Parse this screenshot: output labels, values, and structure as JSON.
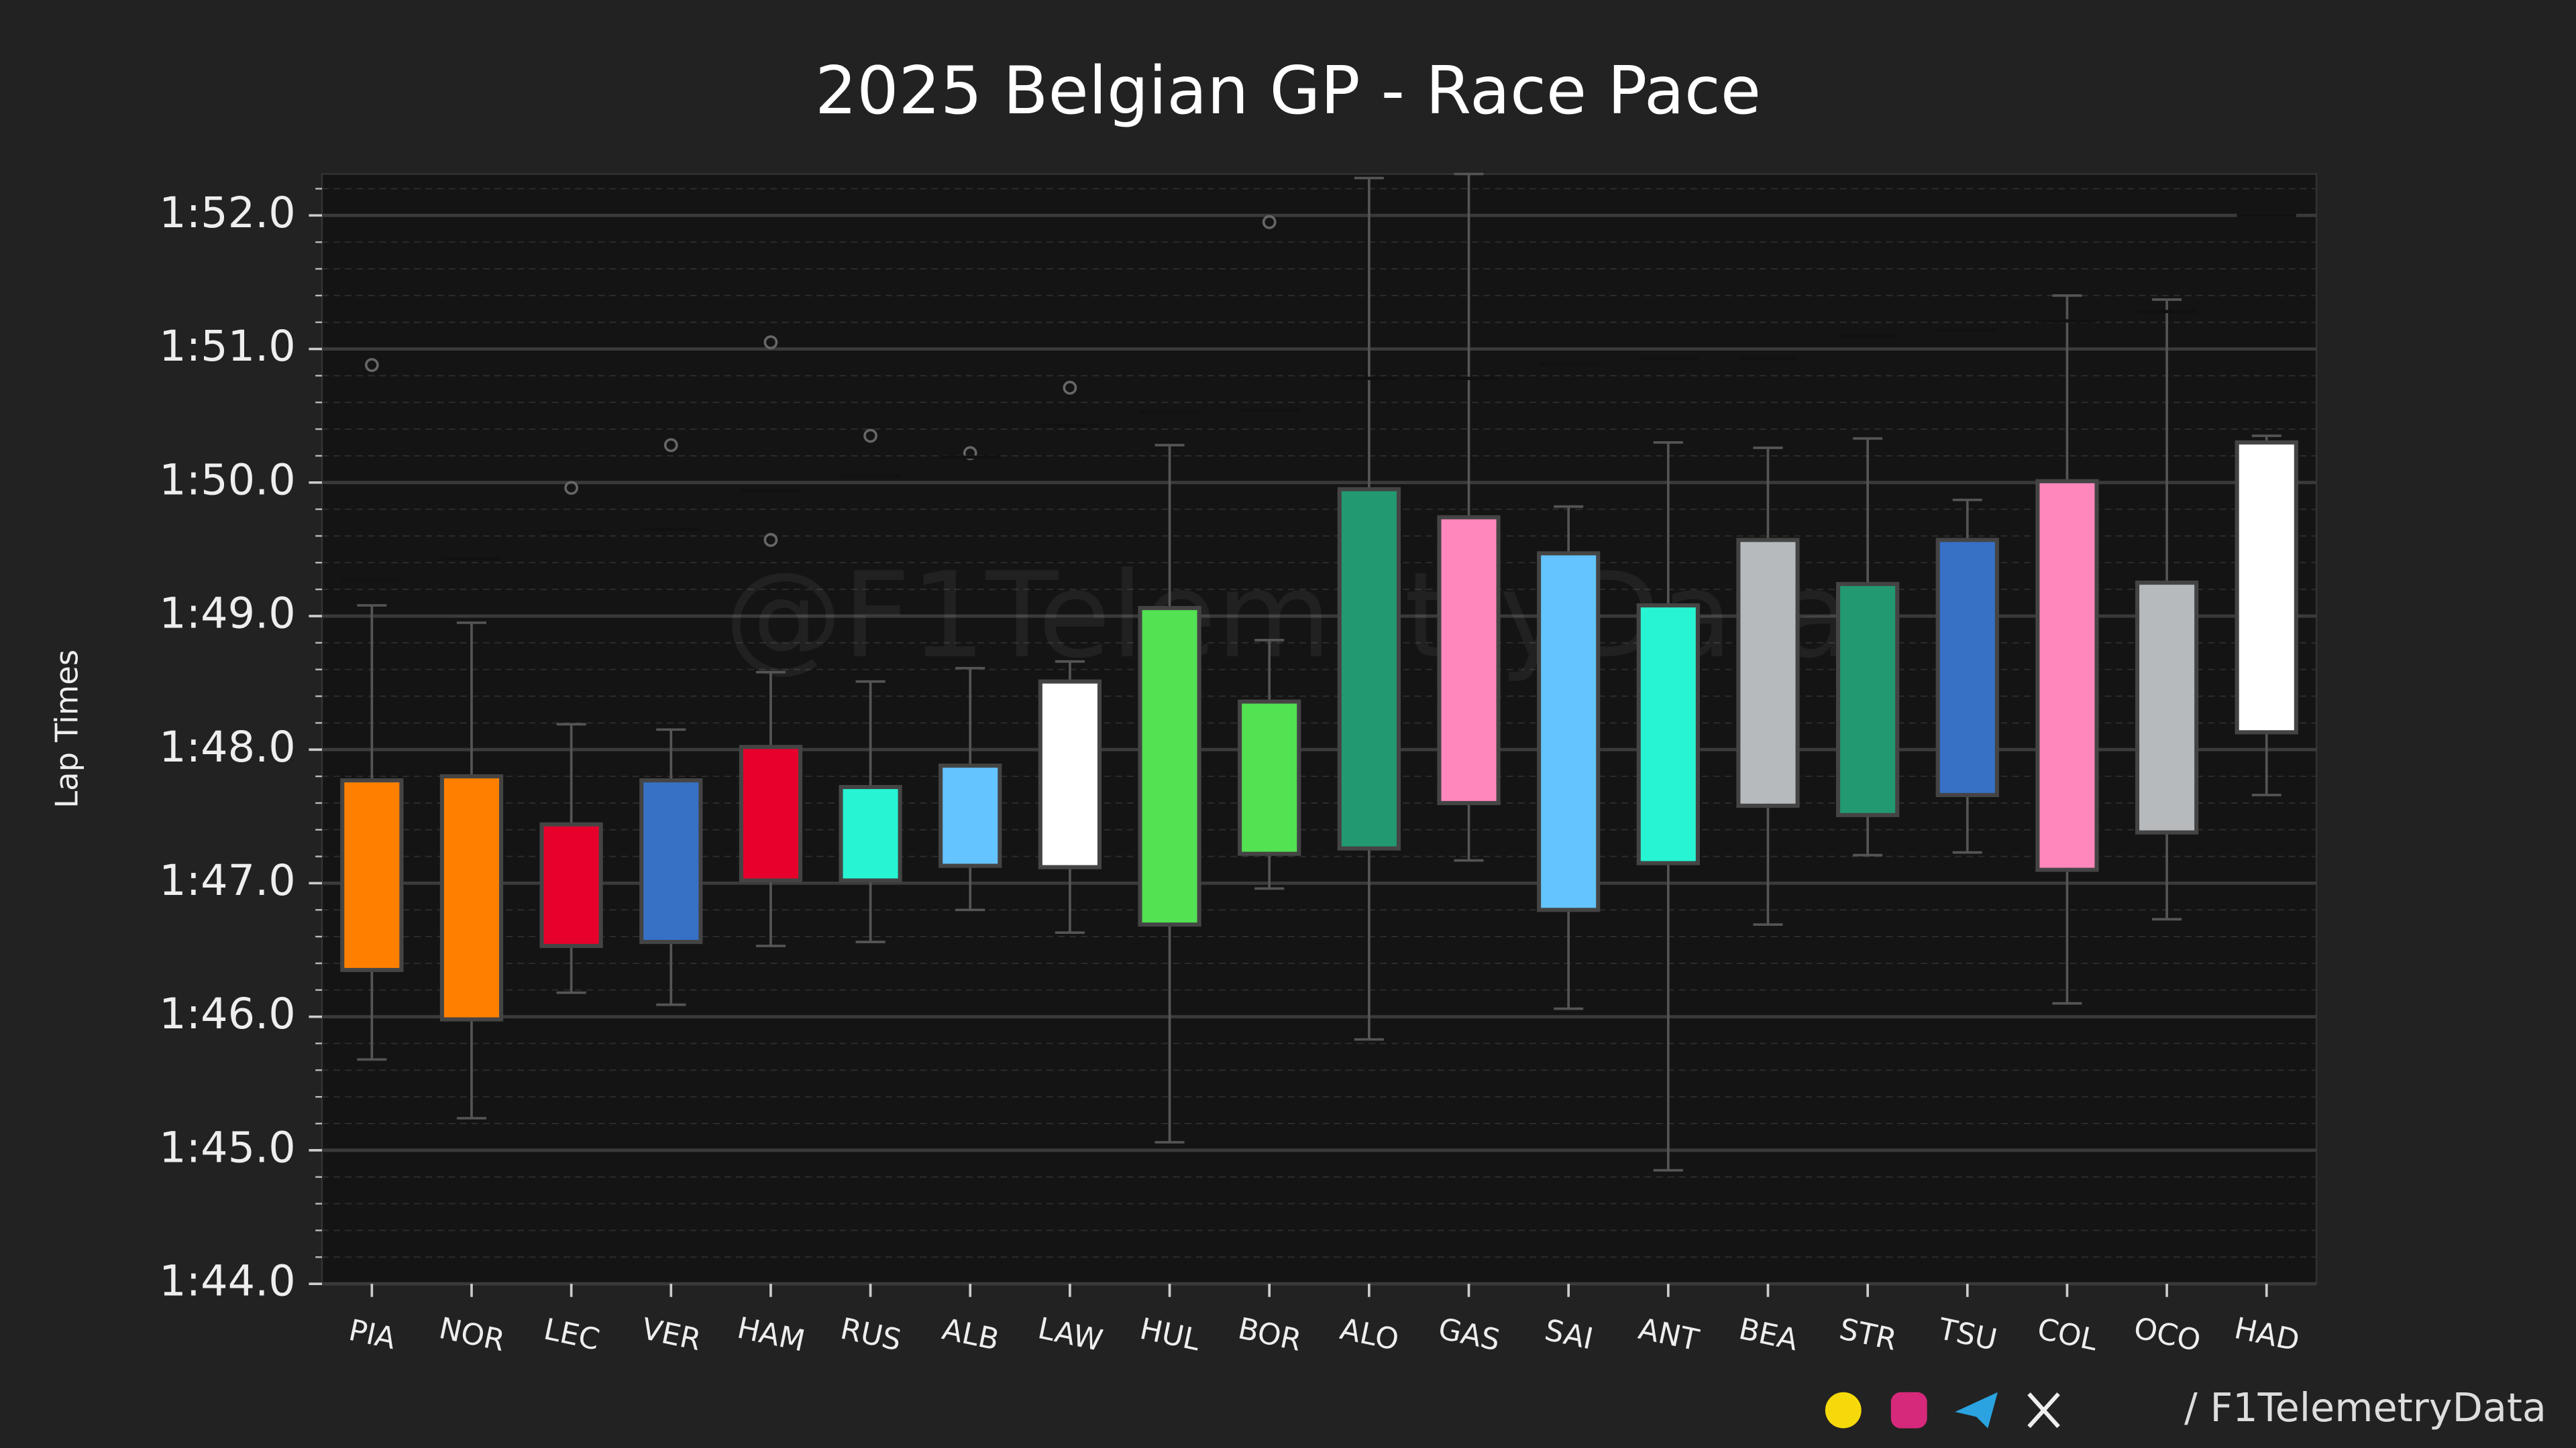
{
  "chart_data": {
    "type": "box",
    "title": "2025 Belgian GP - Race Pace",
    "ylabel": "Lap Times",
    "watermark": "@F1TelemetryData",
    "footer": "/ F1TelemetryData",
    "categories": [
      "PIA",
      "NOR",
      "LEC",
      "VER",
      "HAM",
      "RUS",
      "ALB",
      "LAW",
      "HUL",
      "BOR",
      "ALO",
      "GAS",
      "SAI",
      "ANT",
      "BEA",
      "STR",
      "TSU",
      "COL",
      "OCO",
      "HAD"
    ],
    "colors": [
      "#ff8000",
      "#ff8000",
      "#e8002d",
      "#3671c6",
      "#e8002d",
      "#27f4d2",
      "#64c4ff",
      "#ffffff",
      "#52e252",
      "#52e252",
      "#229971",
      "#ff87bc",
      "#64c4ff",
      "#27f4d2",
      "#b6babd",
      "#229971",
      "#3671c6",
      "#ff87bc",
      "#b6babd",
      "#ffffff"
    ],
    "boxes": [
      {
        "whislo": 105.68,
        "q1": 106.35,
        "q3": 107.77,
        "whishi": 109.08,
        "fliers": [
          110.88
        ],
        "dash": 109.27
      },
      {
        "whislo": 105.24,
        "q1": 105.98,
        "q3": 107.8,
        "whishi": 108.95,
        "fliers": [],
        "dash": 109.43
      },
      {
        "whislo": 106.18,
        "q1": 106.53,
        "q3": 107.44,
        "whishi": 108.19,
        "fliers": [
          109.96
        ],
        "dash": 109.63
      },
      {
        "whislo": 106.09,
        "q1": 106.56,
        "q3": 107.77,
        "whishi": 108.15,
        "fliers": [
          110.28
        ],
        "dash": 109.65
      },
      {
        "whislo": 106.53,
        "q1": 107.02,
        "q3": 108.02,
        "whishi": 108.58,
        "fliers": [
          111.05,
          109.57
        ],
        "dash": 109.94
      },
      {
        "whislo": 106.56,
        "q1": 107.02,
        "q3": 107.72,
        "whishi": 108.51,
        "fliers": [
          110.35
        ],
        "dash": 110.05
      },
      {
        "whislo": 106.8,
        "q1": 107.13,
        "q3": 107.88,
        "whishi": 108.61,
        "fliers": [
          110.22
        ],
        "dash": 110.19
      },
      {
        "whislo": 106.63,
        "q1": 107.12,
        "q3": 108.51,
        "whishi": 108.66,
        "fliers": [
          110.71
        ],
        "dash": 110.43
      },
      {
        "whislo": 105.06,
        "q1": 106.69,
        "q3": 109.06,
        "whishi": 110.28,
        "fliers": [],
        "dash": 110.53
      },
      {
        "whislo": 106.96,
        "q1": 107.22,
        "q3": 108.36,
        "whishi": 108.82,
        "fliers": [
          111.95
        ],
        "dash": 110.54
      },
      {
        "whislo": 105.83,
        "q1": 107.26,
        "q3": 109.95,
        "whishi": 112.28,
        "fliers": [],
        "dash": 110.78
      },
      {
        "whislo": 107.17,
        "q1": 107.6,
        "q3": 109.74,
        "whishi": 112.31,
        "fliers": [],
        "dash": 110.78
      },
      {
        "whislo": 106.06,
        "q1": 106.8,
        "q3": 109.47,
        "whishi": 109.82,
        "fliers": [],
        "dash": 110.89
      },
      {
        "whislo": 104.85,
        "q1": 107.15,
        "q3": 109.08,
        "whishi": 110.3,
        "fliers": [],
        "dash": 110.93
      },
      {
        "whislo": 106.69,
        "q1": 107.58,
        "q3": 109.57,
        "whishi": 110.26,
        "fliers": [],
        "dash": 110.93
      },
      {
        "whislo": 107.21,
        "q1": 107.51,
        "q3": 109.24,
        "whishi": 110.33,
        "fliers": [],
        "dash": 111.1
      },
      {
        "whislo": 107.23,
        "q1": 107.66,
        "q3": 109.57,
        "whishi": 109.87,
        "fliers": [],
        "dash": 111.14
      },
      {
        "whislo": 106.1,
        "q1": 107.1,
        "q3": 110.01,
        "whishi": 111.4,
        "fliers": [],
        "dash": 111.21
      },
      {
        "whislo": 106.73,
        "q1": 107.38,
        "q3": 109.25,
        "whishi": 111.37,
        "fliers": [],
        "dash": 111.28
      },
      {
        "whislo": 107.66,
        "q1": 108.13,
        "q3": 110.3,
        "whishi": 110.35,
        "fliers": [],
        "dash": 112.0
      }
    ],
    "ylim": [
      104,
      112.31
    ],
    "yticks": [
      {
        "value": 104,
        "label": "1:44.0"
      },
      {
        "value": 105,
        "label": "1:45.0"
      },
      {
        "value": 106,
        "label": "1:46.0"
      },
      {
        "value": 107,
        "label": "1:47.0"
      },
      {
        "value": 108,
        "label": "1:48.0"
      },
      {
        "value": 109,
        "label": "1:49.0"
      },
      {
        "value": 110,
        "label": "1:50.0"
      },
      {
        "value": 111,
        "label": "1:51.0"
      },
      {
        "value": 112,
        "label": "1:52.0"
      }
    ],
    "yminor": [
      104.2,
      104.4,
      104.6,
      104.8,
      105.2,
      105.4,
      105.6,
      105.8,
      106.2,
      106.4,
      106.6,
      106.8,
      107.2,
      107.4,
      107.6,
      107.8,
      108.2,
      108.4,
      108.6,
      108.8,
      109.2,
      109.4,
      109.6,
      109.8,
      110.2,
      110.4,
      110.6,
      110.8,
      111.2,
      111.4,
      111.6,
      111.8,
      112.2
    ],
    "grid": true
  }
}
